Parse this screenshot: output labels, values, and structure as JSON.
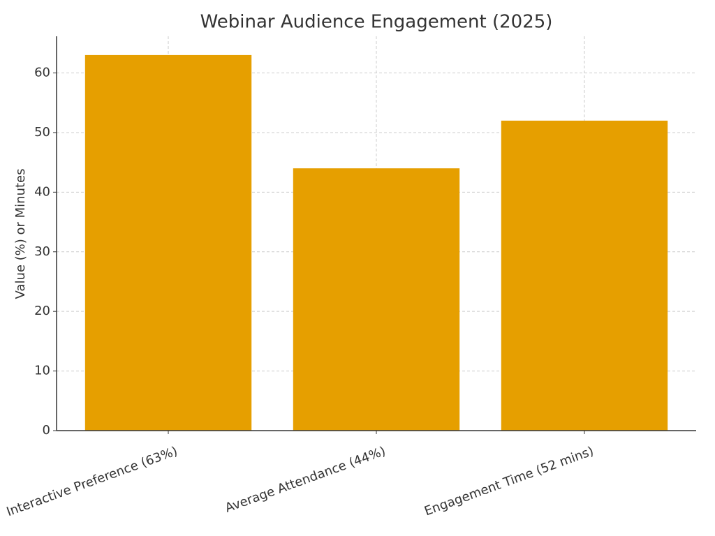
{
  "chart_data": {
    "type": "bar",
    "title": "Webinar Audience Engagement (2025)",
    "y_label": "Value (%) or Minutes",
    "categories": [
      "Interactive Preference (63%)",
      "Average Attendance (44%)",
      "Engagement Time (52 mins)"
    ],
    "values": [
      63,
      44,
      52
    ],
    "color": "#e69f00",
    "ylim": [
      0,
      66.15
    ],
    "yticks": [
      0,
      10,
      20,
      30,
      40,
      50,
      60
    ],
    "grid": true
  }
}
